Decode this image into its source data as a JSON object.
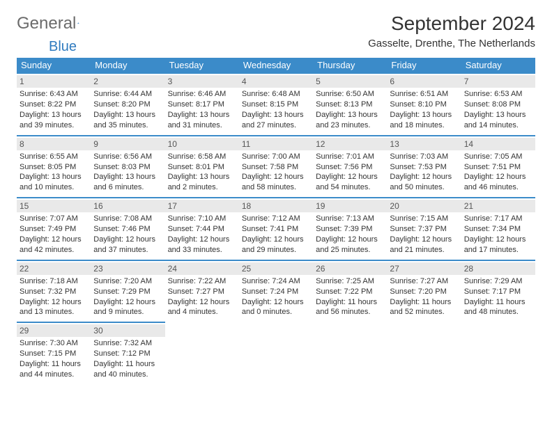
{
  "logo": {
    "text1": "General",
    "text2": "Blue"
  },
  "header": {
    "month_title": "September 2024",
    "location": "Gasselte, Drenthe, The Netherlands"
  },
  "colors": {
    "header_bg": "#3b8bc9",
    "header_fg": "#ffffff",
    "daynum_bg": "#e9e9e9",
    "cell_border": "#3b8bc9",
    "logo_gray": "#6b6b6b",
    "logo_blue": "#2f7bbf"
  },
  "calendar": {
    "day_headers": [
      "Sunday",
      "Monday",
      "Tuesday",
      "Wednesday",
      "Thursday",
      "Friday",
      "Saturday"
    ],
    "weeks": [
      [
        {
          "n": "1",
          "sr": "Sunrise: 6:43 AM",
          "ss": "Sunset: 8:22 PM",
          "dl1": "Daylight: 13 hours",
          "dl2": "and 39 minutes."
        },
        {
          "n": "2",
          "sr": "Sunrise: 6:44 AM",
          "ss": "Sunset: 8:20 PM",
          "dl1": "Daylight: 13 hours",
          "dl2": "and 35 minutes."
        },
        {
          "n": "3",
          "sr": "Sunrise: 6:46 AM",
          "ss": "Sunset: 8:17 PM",
          "dl1": "Daylight: 13 hours",
          "dl2": "and 31 minutes."
        },
        {
          "n": "4",
          "sr": "Sunrise: 6:48 AM",
          "ss": "Sunset: 8:15 PM",
          "dl1": "Daylight: 13 hours",
          "dl2": "and 27 minutes."
        },
        {
          "n": "5",
          "sr": "Sunrise: 6:50 AM",
          "ss": "Sunset: 8:13 PM",
          "dl1": "Daylight: 13 hours",
          "dl2": "and 23 minutes."
        },
        {
          "n": "6",
          "sr": "Sunrise: 6:51 AM",
          "ss": "Sunset: 8:10 PM",
          "dl1": "Daylight: 13 hours",
          "dl2": "and 18 minutes."
        },
        {
          "n": "7",
          "sr": "Sunrise: 6:53 AM",
          "ss": "Sunset: 8:08 PM",
          "dl1": "Daylight: 13 hours",
          "dl2": "and 14 minutes."
        }
      ],
      [
        {
          "n": "8",
          "sr": "Sunrise: 6:55 AM",
          "ss": "Sunset: 8:05 PM",
          "dl1": "Daylight: 13 hours",
          "dl2": "and 10 minutes."
        },
        {
          "n": "9",
          "sr": "Sunrise: 6:56 AM",
          "ss": "Sunset: 8:03 PM",
          "dl1": "Daylight: 13 hours",
          "dl2": "and 6 minutes."
        },
        {
          "n": "10",
          "sr": "Sunrise: 6:58 AM",
          "ss": "Sunset: 8:01 PM",
          "dl1": "Daylight: 13 hours",
          "dl2": "and 2 minutes."
        },
        {
          "n": "11",
          "sr": "Sunrise: 7:00 AM",
          "ss": "Sunset: 7:58 PM",
          "dl1": "Daylight: 12 hours",
          "dl2": "and 58 minutes."
        },
        {
          "n": "12",
          "sr": "Sunrise: 7:01 AM",
          "ss": "Sunset: 7:56 PM",
          "dl1": "Daylight: 12 hours",
          "dl2": "and 54 minutes."
        },
        {
          "n": "13",
          "sr": "Sunrise: 7:03 AM",
          "ss": "Sunset: 7:53 PM",
          "dl1": "Daylight: 12 hours",
          "dl2": "and 50 minutes."
        },
        {
          "n": "14",
          "sr": "Sunrise: 7:05 AM",
          "ss": "Sunset: 7:51 PM",
          "dl1": "Daylight: 12 hours",
          "dl2": "and 46 minutes."
        }
      ],
      [
        {
          "n": "15",
          "sr": "Sunrise: 7:07 AM",
          "ss": "Sunset: 7:49 PM",
          "dl1": "Daylight: 12 hours",
          "dl2": "and 42 minutes."
        },
        {
          "n": "16",
          "sr": "Sunrise: 7:08 AM",
          "ss": "Sunset: 7:46 PM",
          "dl1": "Daylight: 12 hours",
          "dl2": "and 37 minutes."
        },
        {
          "n": "17",
          "sr": "Sunrise: 7:10 AM",
          "ss": "Sunset: 7:44 PM",
          "dl1": "Daylight: 12 hours",
          "dl2": "and 33 minutes."
        },
        {
          "n": "18",
          "sr": "Sunrise: 7:12 AM",
          "ss": "Sunset: 7:41 PM",
          "dl1": "Daylight: 12 hours",
          "dl2": "and 29 minutes."
        },
        {
          "n": "19",
          "sr": "Sunrise: 7:13 AM",
          "ss": "Sunset: 7:39 PM",
          "dl1": "Daylight: 12 hours",
          "dl2": "and 25 minutes."
        },
        {
          "n": "20",
          "sr": "Sunrise: 7:15 AM",
          "ss": "Sunset: 7:37 PM",
          "dl1": "Daylight: 12 hours",
          "dl2": "and 21 minutes."
        },
        {
          "n": "21",
          "sr": "Sunrise: 7:17 AM",
          "ss": "Sunset: 7:34 PM",
          "dl1": "Daylight: 12 hours",
          "dl2": "and 17 minutes."
        }
      ],
      [
        {
          "n": "22",
          "sr": "Sunrise: 7:18 AM",
          "ss": "Sunset: 7:32 PM",
          "dl1": "Daylight: 12 hours",
          "dl2": "and 13 minutes."
        },
        {
          "n": "23",
          "sr": "Sunrise: 7:20 AM",
          "ss": "Sunset: 7:29 PM",
          "dl1": "Daylight: 12 hours",
          "dl2": "and 9 minutes."
        },
        {
          "n": "24",
          "sr": "Sunrise: 7:22 AM",
          "ss": "Sunset: 7:27 PM",
          "dl1": "Daylight: 12 hours",
          "dl2": "and 4 minutes."
        },
        {
          "n": "25",
          "sr": "Sunrise: 7:24 AM",
          "ss": "Sunset: 7:24 PM",
          "dl1": "Daylight: 12 hours",
          "dl2": "and 0 minutes."
        },
        {
          "n": "26",
          "sr": "Sunrise: 7:25 AM",
          "ss": "Sunset: 7:22 PM",
          "dl1": "Daylight: 11 hours",
          "dl2": "and 56 minutes."
        },
        {
          "n": "27",
          "sr": "Sunrise: 7:27 AM",
          "ss": "Sunset: 7:20 PM",
          "dl1": "Daylight: 11 hours",
          "dl2": "and 52 minutes."
        },
        {
          "n": "28",
          "sr": "Sunrise: 7:29 AM",
          "ss": "Sunset: 7:17 PM",
          "dl1": "Daylight: 11 hours",
          "dl2": "and 48 minutes."
        }
      ],
      [
        {
          "n": "29",
          "sr": "Sunrise: 7:30 AM",
          "ss": "Sunset: 7:15 PM",
          "dl1": "Daylight: 11 hours",
          "dl2": "and 44 minutes."
        },
        {
          "n": "30",
          "sr": "Sunrise: 7:32 AM",
          "ss": "Sunset: 7:12 PM",
          "dl1": "Daylight: 11 hours",
          "dl2": "and 40 minutes."
        },
        null,
        null,
        null,
        null,
        null
      ]
    ]
  }
}
